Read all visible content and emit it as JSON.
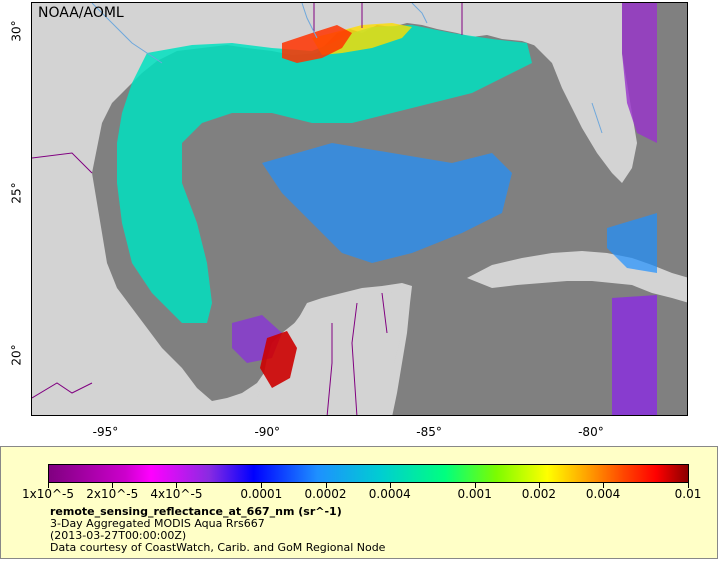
{
  "map": {
    "credit": "NOAA/AOML",
    "x_ticks": [
      {
        "label": "-95°",
        "lon": -95
      },
      {
        "label": "-90°",
        "lon": -90
      },
      {
        "label": "-85°",
        "lon": -85
      },
      {
        "label": "-80°",
        "lon": -80
      }
    ],
    "y_ticks": [
      {
        "label": "30°",
        "lat": 30
      },
      {
        "label": "25°",
        "lat": 25
      },
      {
        "label": "20°",
        "lat": 20
      }
    ],
    "colors": {
      "water": "#808080",
      "land": "#d3d3d3",
      "border": "#800080",
      "river": "#6fa8dc"
    }
  },
  "colorbar": {
    "ticks": [
      {
        "label": "1x10^-5",
        "value": 1e-05
      },
      {
        "label": "2x10^-5",
        "value": 2e-05
      },
      {
        "label": "4x10^-5",
        "value": 4e-05
      },
      {
        "label": "0.0001",
        "value": 0.0001
      },
      {
        "label": "0.0002",
        "value": 0.0002
      },
      {
        "label": "0.0004",
        "value": 0.0004
      },
      {
        "label": "0.001",
        "value": 0.001
      },
      {
        "label": "0.002",
        "value": 0.002
      },
      {
        "label": "0.004",
        "value": 0.004
      },
      {
        "label": "0.01",
        "value": 0.01
      }
    ]
  },
  "legend": {
    "title": "remote_sensing_reflectance_at_667_nm (sr^-1)",
    "line1": "3-Day Aggregated MODIS Aqua Rrs667",
    "line2": "(2013-03-27T00:00:00Z)",
    "line3": "Data courtesy of CoastWatch, Carib. and GoM Regional Node"
  }
}
